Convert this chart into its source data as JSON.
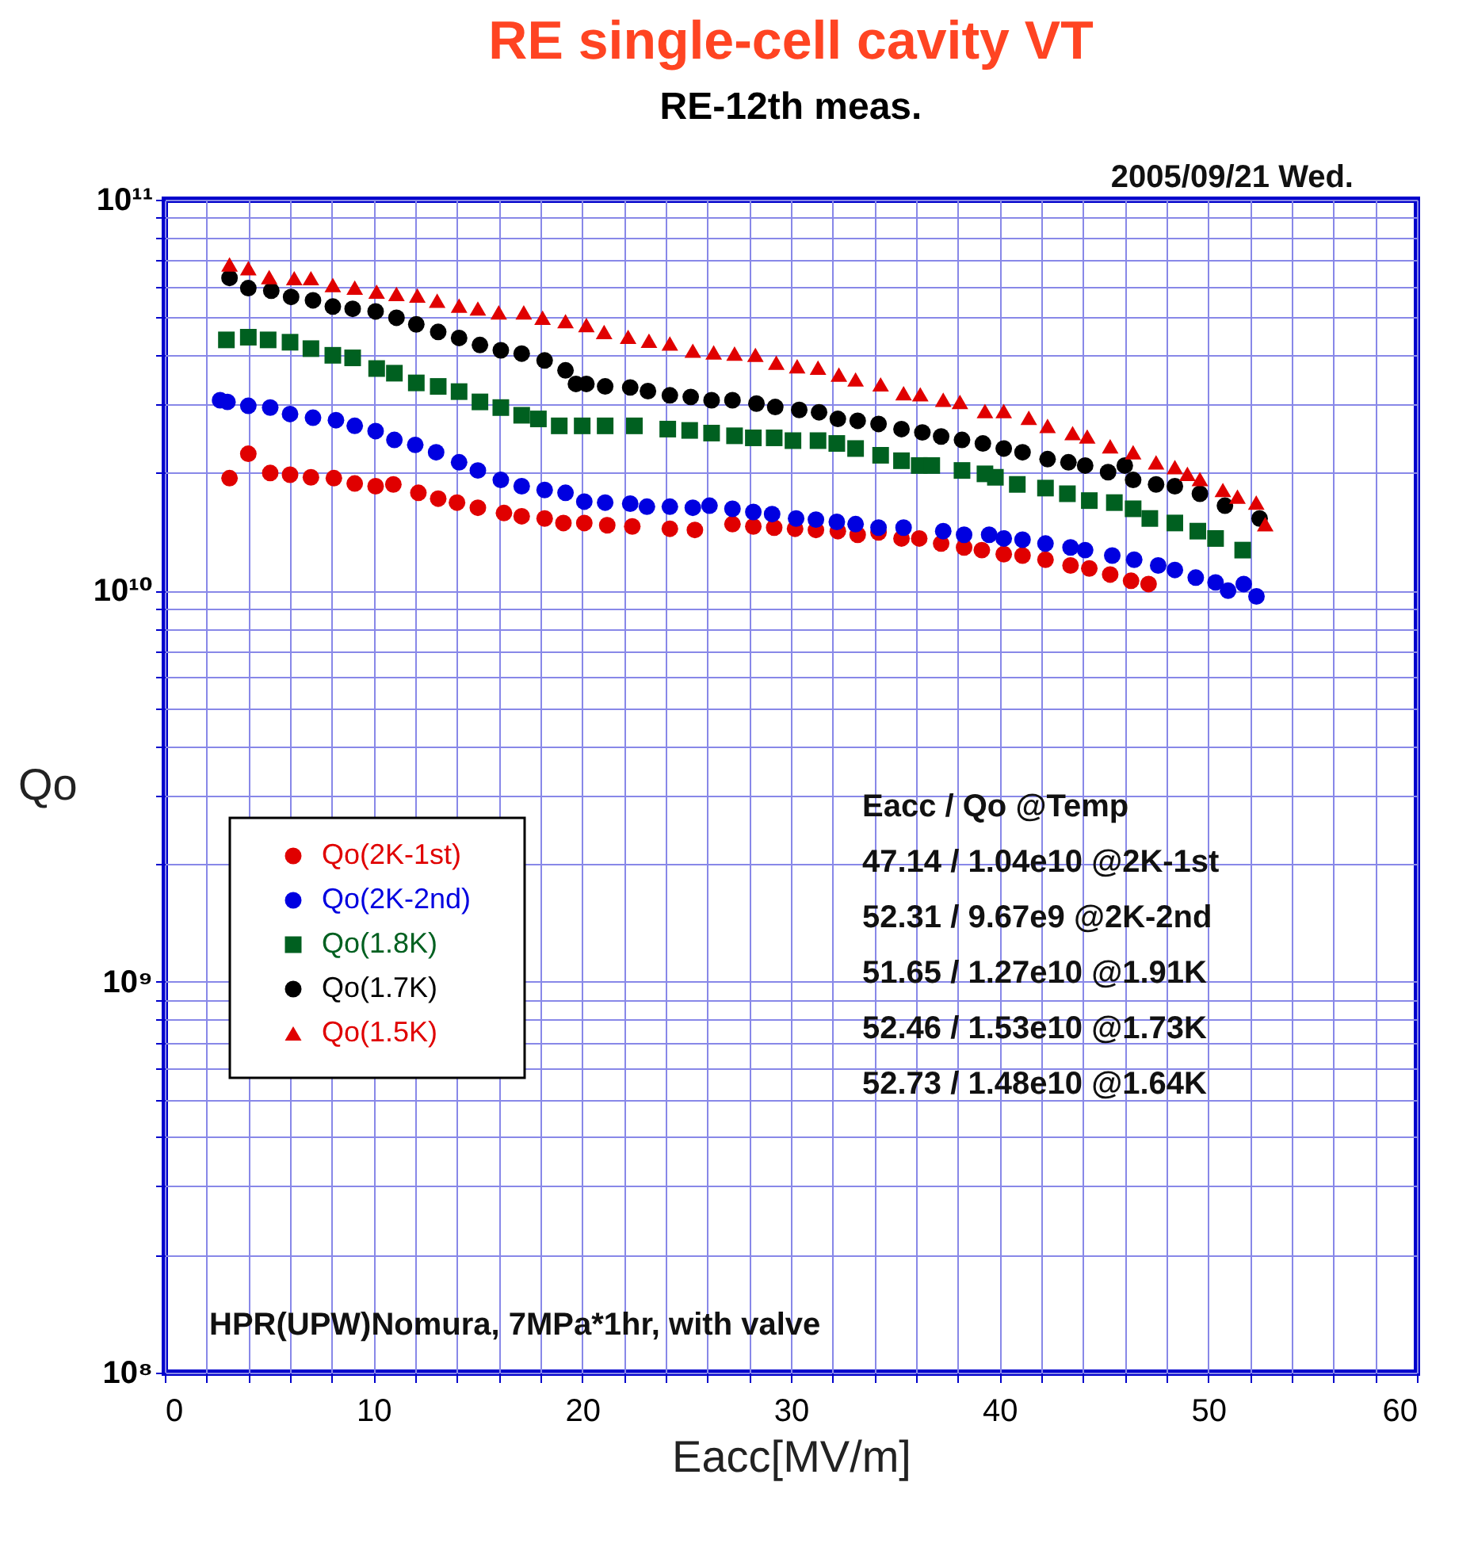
{
  "chart_data": {
    "type": "scatter",
    "title": "RE single-cell cavity VT",
    "subtitle": "RE-12th meas.",
    "xlabel": "Eacc[MV/m]",
    "ylabel": "Qo",
    "annotations": [
      "2005/09/21 Wed.",
      "Eacc  /  Qo        @Temp",
      "47.14 / 1.04e10 @2K-1st",
      "52.31 / 9.67e9   @2K-2nd",
      "51.65 / 1.27e10 @1.91K",
      "52.46 / 1.53e10 @1.73K",
      "52.73 / 1.48e10 @1.64K",
      "HPR(UPW)Nomura, 7MPa*1hr, with valve"
    ],
    "log": "y",
    "grid": true,
    "legend": "left",
    "xlim": [
      0,
      60
    ],
    "ylim": [
      100000000.0,
      100000000000.0
    ],
    "xticks": [
      0,
      {
        "value": 2,
        "label": null
      },
      {
        "value": 4,
        "label": null
      },
      {
        "value": 6,
        "label": null
      },
      {
        "value": 8,
        "label": null
      },
      10,
      {
        "value": 12,
        "label": null
      },
      {
        "value": 14,
        "label": null
      },
      {
        "value": 16,
        "label": null
      },
      {
        "value": 18,
        "label": null
      },
      20,
      {
        "value": 22,
        "label": null
      },
      {
        "value": 24,
        "label": null
      },
      {
        "value": 26,
        "label": null
      },
      {
        "value": 28,
        "label": null
      },
      30,
      {
        "value": 32,
        "label": null
      },
      {
        "value": 34,
        "label": null
      },
      {
        "value": 36,
        "label": null
      },
      {
        "value": 38,
        "label": null
      },
      40,
      {
        "value": 42,
        "label": null
      },
      {
        "value": 44,
        "label": null
      },
      {
        "value": 46,
        "label": null
      },
      {
        "value": 48,
        "label": null
      },
      50,
      {
        "value": 52,
        "label": null
      },
      {
        "value": 54,
        "label": null
      },
      {
        "value": 56,
        "label": null
      },
      {
        "value": 58,
        "label": null
      },
      60
    ],
    "yticks": [
      {
        "value": 100000000.0,
        "label": "10⁸"
      },
      {
        "value": 200000000.0,
        "label": null
      },
      {
        "value": 300000000.0,
        "label": null
      },
      {
        "value": 400000000.0,
        "label": null
      },
      {
        "value": 500000000.0,
        "label": null
      },
      {
        "value": 600000000.0,
        "label": null
      },
      {
        "value": 700000000.0,
        "label": null
      },
      {
        "value": 800000000.0,
        "label": null
      },
      {
        "value": 900000000.0,
        "label": null
      },
      {
        "value": 1000000000.0,
        "label": "10⁹"
      },
      {
        "value": 2000000000.0,
        "label": null
      },
      {
        "value": 3000000000.0,
        "label": null
      },
      {
        "value": 4000000000.0,
        "label": null
      },
      {
        "value": 5000000000.0,
        "label": null
      },
      {
        "value": 6000000000.0,
        "label": null
      },
      {
        "value": 7000000000.0,
        "label": null
      },
      {
        "value": 8000000000.0,
        "label": null
      },
      {
        "value": 9000000000.0,
        "label": null
      },
      {
        "value": 10000000000.0,
        "label": "10¹⁰"
      },
      {
        "value": 20000000000.0,
        "label": null
      },
      {
        "value": 30000000000.0,
        "label": null
      },
      {
        "value": 40000000000.0,
        "label": null
      },
      {
        "value": 50000000000.0,
        "label": null
      },
      {
        "value": 60000000000.0,
        "label": null
      },
      {
        "value": 70000000000.0,
        "label": null
      },
      {
        "value": 80000000000.0,
        "label": null
      },
      {
        "value": 90000000000.0,
        "label": null
      },
      {
        "value": 100000000000.0,
        "label": "10¹¹"
      }
    ],
    "series": [
      {
        "name": "Qo(2K-1st)",
        "color": "#e00000",
        "marker": "circle",
        "x": [
          3.1,
          4.0,
          5.05,
          6.0,
          7.0,
          8.1,
          9.1,
          10.1,
          10.95,
          12.15,
          13.1,
          14.0,
          15.0,
          16.25,
          17.1,
          18.2,
          19.1,
          20.1,
          21.2,
          22.4,
          24.2,
          25.4,
          27.2,
          28.2,
          29.2,
          30.2,
          31.2,
          32.25,
          33.2,
          34.2,
          35.3,
          36.15,
          37.2,
          38.3,
          39.15,
          40.2,
          41.1,
          42.2,
          43.4,
          44.3,
          45.3,
          46.3,
          47.14
        ],
        "values": [
          19400000000.0,
          22400000000.0,
          20000000000.0,
          19800000000.0,
          19500000000.0,
          19400000000.0,
          18800000000.0,
          18500000000.0,
          18700000000.0,
          17800000000.0,
          17200000000.0,
          16800000000.0,
          16300000000.0,
          15800000000.0,
          15500000000.0,
          15300000000.0,
          14900000000.0,
          14900000000.0,
          14700000000.0,
          14600000000.0,
          14400000000.0,
          14300000000.0,
          14800000000.0,
          14600000000.0,
          14500000000.0,
          14400000000.0,
          14300000000.0,
          14200000000.0,
          13900000000.0,
          14100000000.0,
          13600000000.0,
          13600000000.0,
          13200000000.0,
          12900000000.0,
          12700000000.0,
          12400000000.0,
          12300000000.0,
          12000000000.0,
          11600000000.0,
          11400000000.0,
          11000000000.0,
          10600000000.0,
          10400000000.0
        ]
      },
      {
        "name": "Qo(2K-2nd)",
        "color": "#0000e0",
        "marker": "circle",
        "x": [
          2.65,
          3.0,
          4.0,
          5.05,
          6.0,
          7.1,
          8.2,
          9.1,
          10.1,
          11.0,
          12.0,
          13.0,
          14.1,
          15.0,
          16.1,
          17.1,
          18.2,
          19.2,
          20.1,
          21.1,
          22.3,
          23.1,
          24.2,
          25.3,
          26.1,
          27.2,
          28.2,
          29.1,
          30.25,
          31.2,
          32.2,
          33.1,
          34.2,
          35.4,
          37.3,
          38.3,
          39.5,
          40.2,
          41.1,
          42.2,
          43.4,
          44.1,
          45.4,
          46.45,
          47.6,
          48.4,
          49.4,
          50.35,
          50.95,
          51.7,
          52.31
        ],
        "values": [
          30700000000.0,
          30400000000.0,
          29700000000.0,
          29400000000.0,
          28300000000.0,
          27700000000.0,
          27300000000.0,
          26400000000.0,
          25600000000.0,
          24300000000.0,
          23600000000.0,
          22600000000.0,
          21300000000.0,
          20300000000.0,
          19200000000.0,
          18500000000.0,
          18100000000.0,
          17800000000.0,
          16900000000.0,
          16800000000.0,
          16700000000.0,
          16400000000.0,
          16400000000.0,
          16300000000.0,
          16500000000.0,
          16200000000.0,
          15900000000.0,
          15700000000.0,
          15300000000.0,
          15200000000.0,
          15000000000.0,
          14800000000.0,
          14500000000.0,
          14500000000.0,
          14200000000.0,
          13900000000.0,
          13900000000.0,
          13600000000.0,
          13500000000.0,
          13200000000.0,
          12900000000.0,
          12700000000.0,
          12300000000.0,
          12000000000.0,
          11600000000.0,
          11300000000.0,
          10800000000.0,
          10500000000.0,
          10000000000.0,
          10400000000.0,
          9670000000.0
        ]
      },
      {
        "name": "Qo(1.8K)",
        "color": "#006020",
        "marker": "square",
        "x": [
          2.95,
          4.0,
          4.95,
          6.0,
          7.0,
          8.05,
          9.0,
          10.15,
          11.0,
          12.05,
          13.1,
          14.1,
          15.1,
          16.1,
          17.1,
          17.9,
          18.9,
          20.0,
          21.1,
          22.5,
          24.1,
          25.15,
          26.2,
          27.3,
          28.2,
          29.2,
          30.1,
          31.3,
          32.2,
          33.1,
          34.3,
          35.3,
          36.15,
          36.75,
          38.2,
          39.3,
          39.8,
          40.85,
          42.2,
          43.25,
          44.3,
          45.5,
          46.4,
          47.2,
          48.4,
          49.5,
          50.35,
          51.65
        ],
        "values": [
          43800000000.0,
          44500000000.0,
          43800000000.0,
          43200000000.0,
          41600000000.0,
          40000000000.0,
          39400000000.0,
          37000000000.0,
          36000000000.0,
          34000000000.0,
          33300000000.0,
          32300000000.0,
          30400000000.0,
          29400000000.0,
          28100000000.0,
          27500000000.0,
          26400000000.0,
          26400000000.0,
          26400000000.0,
          26400000000.0,
          25900000000.0,
          25700000000.0,
          25300000000.0,
          24900000000.0,
          24600000000.0,
          24600000000.0,
          24200000000.0,
          24200000000.0,
          23800000000.0,
          23100000000.0,
          22200000000.0,
          21500000000.0,
          20900000000.0,
          20900000000.0,
          20300000000.0,
          19900000000.0,
          19500000000.0,
          18700000000.0,
          18300000000.0,
          17700000000.0,
          17000000000.0,
          16800000000.0,
          16200000000.0,
          15300000000.0,
          14900000000.0,
          14200000000.0,
          13600000000.0,
          12700000000.0
        ]
      },
      {
        "name": "Qo(1.7K)",
        "color": "#000000",
        "marker": "circle",
        "x": [
          3.1,
          4.0,
          5.1,
          6.05,
          7.1,
          8.05,
          9.0,
          10.1,
          11.1,
          12.05,
          13.1,
          14.1,
          15.1,
          16.1,
          17.1,
          18.2,
          19.2,
          19.7,
          20.2,
          21.1,
          22.3,
          23.15,
          24.2,
          25.2,
          26.2,
          27.2,
          28.35,
          29.25,
          30.4,
          31.35,
          32.25,
          33.2,
          34.2,
          35.3,
          36.3,
          37.2,
          38.2,
          39.2,
          40.2,
          41.1,
          42.3,
          43.3,
          44.1,
          45.2,
          46.0,
          46.4,
          47.5,
          48.4,
          49.6,
          50.8,
          52.46
        ],
        "values": [
          63100000000.0,
          59400000000.0,
          58500000000.0,
          56400000000.0,
          55300000000.0,
          53300000000.0,
          52600000000.0,
          51800000000.0,
          49900000000.0,
          48000000000.0,
          45900000000.0,
          44300000000.0,
          42500000000.0,
          41200000000.0,
          40400000000.0,
          38800000000.0,
          36600000000.0,
          33800000000.0,
          33800000000.0,
          33300000000.0,
          33100000000.0,
          32400000000.0,
          31600000000.0,
          31300000000.0,
          30700000000.0,
          30700000000.0,
          30100000000.0,
          29500000000.0,
          29000000000.0,
          28600000000.0,
          27500000000.0,
          27200000000.0,
          26700000000.0,
          25900000000.0,
          25400000000.0,
          24800000000.0,
          24300000000.0,
          23800000000.0,
          23100000000.0,
          22600000000.0,
          21700000000.0,
          21300000000.0,
          20900000000.0,
          20100000000.0,
          20900000000.0,
          19200000000.0,
          18700000000.0,
          18500000000.0,
          17700000000.0,
          16500000000.0,
          15300000000.0
        ]
      },
      {
        "name": "Qo(1.5K)",
        "color": "#e00000",
        "marker": "triangle",
        "x": [
          3.1,
          4.0,
          5.0,
          6.2,
          7.0,
          8.05,
          9.1,
          10.15,
          11.1,
          12.1,
          13.05,
          14.1,
          15.0,
          16.0,
          17.2,
          18.1,
          19.2,
          20.2,
          21.05,
          22.2,
          23.2,
          24.2,
          25.3,
          26.3,
          27.3,
          28.3,
          29.3,
          30.3,
          31.3,
          32.3,
          33.1,
          34.3,
          35.4,
          36.2,
          37.3,
          38.1,
          39.3,
          40.2,
          41.4,
          42.3,
          43.5,
          44.2,
          45.3,
          46.4,
          47.5,
          48.4,
          49.0,
          49.6,
          50.7,
          51.4,
          52.3,
          52.73
        ],
        "values": [
          68300000000.0,
          66800000000.0,
          63400000000.0,
          63000000000.0,
          63000000000.0,
          60500000000.0,
          59600000000.0,
          58200000000.0,
          57400000000.0,
          56900000000.0,
          55200000000.0,
          53600000000.0,
          52700000000.0,
          51500000000.0,
          51500000000.0,
          49900000000.0,
          48900000000.0,
          47800000000.0,
          45900000000.0,
          44600000000.0,
          43600000000.0,
          42900000000.0,
          41100000000.0,
          40700000000.0,
          40400000000.0,
          40100000000.0,
          38300000000.0,
          37500000000.0,
          37200000000.0,
          35700000000.0,
          34700000000.0,
          33700000000.0,
          32000000000.0,
          31800000000.0,
          30800000000.0,
          30400000000.0,
          28800000000.0,
          28800000000.0,
          27700000000.0,
          26400000000.0,
          25300000000.0,
          24800000000.0,
          23400000000.0,
          22600000000.0,
          21300000000.0,
          20700000000.0,
          19900000000.0,
          19300000000.0,
          18100000000.0,
          17400000000.0,
          16800000000.0,
          14800000000.0
        ]
      }
    ]
  }
}
